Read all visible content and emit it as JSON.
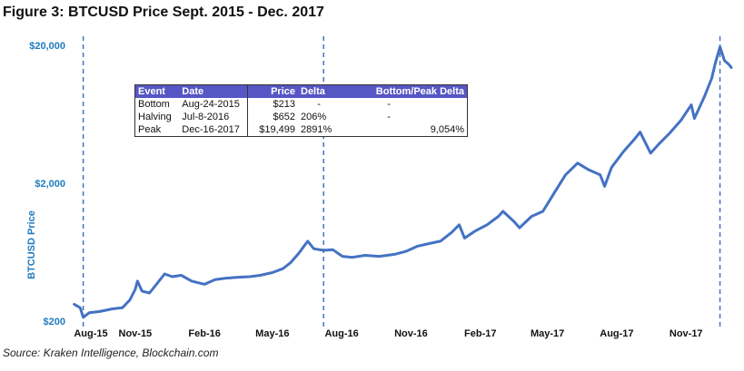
{
  "title": "Figure 3: BTCUSD Price Sept. 2015 - Dec. 2017",
  "source": "Source: Kraken Intelligence, Blockchain.com",
  "table": {
    "headers": [
      "Event",
      "Date",
      "Price",
      "Delta",
      "Bottom/Peak Delta"
    ],
    "rows": [
      {
        "event": "Bottom",
        "date": "Aug-24-2015",
        "price": "$213",
        "delta": "-",
        "bpd": "-"
      },
      {
        "event": "Halving",
        "date": "Jul-8-2016",
        "price": "$652",
        "delta": "206%",
        "bpd": "-"
      },
      {
        "event": "Peak",
        "date": "Dec-16-2017",
        "price": "$19,499",
        "delta": "2891%",
        "bpd": "9,054%"
      }
    ]
  },
  "colors": {
    "line": "#4472c4",
    "axis_text": "#1f7bc1",
    "table_header": "#5656c4"
  },
  "chart_data": {
    "type": "line",
    "title": "Figure 3: BTCUSD Price Sept. 2015 - Dec. 2017",
    "xlabel": "",
    "ylabel": "BTCUSD Price",
    "y_scale": "log",
    "ylim": [
      200,
      20000
    ],
    "xlim": [
      "2015-08-10",
      "2017-12-31"
    ],
    "y_ticks": [
      {
        "value": 200,
        "label": "$200"
      },
      {
        "value": 2000,
        "label": "$2,000"
      },
      {
        "value": 20000,
        "label": "$20,000"
      }
    ],
    "x_ticks": [
      {
        "value": "2015-08-01",
        "label": "Aug-15"
      },
      {
        "value": "2015-11-01",
        "label": "Nov-15"
      },
      {
        "value": "2016-02-01",
        "label": "Feb-16"
      },
      {
        "value": "2016-05-01",
        "label": "May-16"
      },
      {
        "value": "2016-08-01",
        "label": "Aug-16"
      },
      {
        "value": "2016-11-01",
        "label": "Nov-16"
      },
      {
        "value": "2017-02-01",
        "label": "Feb-17"
      },
      {
        "value": "2017-05-01",
        "label": "May-17"
      },
      {
        "value": "2017-08-01",
        "label": "Aug-17"
      },
      {
        "value": "2017-11-01",
        "label": "Nov-17"
      }
    ],
    "event_lines": [
      {
        "date": "2015-08-24",
        "name": "Bottom"
      },
      {
        "date": "2016-07-08",
        "name": "Halving"
      },
      {
        "date": "2017-12-16",
        "name": "Peak"
      }
    ],
    "grid": false,
    "legend": "none",
    "series": [
      {
        "x": [
          "2015-08-12",
          "2015-08-20",
          "2015-08-24",
          "2015-09-01",
          "2015-09-15",
          "2015-10-01",
          "2015-10-15",
          "2015-10-25",
          "2015-11-01",
          "2015-11-04",
          "2015-11-10",
          "2015-11-20",
          "2015-12-01",
          "2015-12-10",
          "2015-12-20",
          "2016-01-01",
          "2016-01-15",
          "2016-02-01",
          "2016-02-15",
          "2016-03-01",
          "2016-03-15",
          "2016-04-01",
          "2016-04-15",
          "2016-05-01",
          "2016-05-15",
          "2016-05-25",
          "2016-06-05",
          "2016-06-12",
          "2016-06-17",
          "2016-06-25",
          "2016-07-08",
          "2016-07-20",
          "2016-08-02",
          "2016-08-15",
          "2016-09-01",
          "2016-09-20",
          "2016-10-10",
          "2016-10-25",
          "2016-11-10",
          "2016-11-25",
          "2016-12-10",
          "2016-12-25",
          "2017-01-04",
          "2017-01-11",
          "2017-01-25",
          "2017-02-10",
          "2017-02-25",
          "2017-03-03",
          "2017-03-18",
          "2017-03-25",
          "2017-04-10",
          "2017-04-25",
          "2017-05-10",
          "2017-05-25",
          "2017-06-10",
          "2017-06-25",
          "2017-07-10",
          "2017-07-16",
          "2017-07-25",
          "2017-08-10",
          "2017-08-25",
          "2017-09-01",
          "2017-09-15",
          "2017-09-25",
          "2017-10-10",
          "2017-10-25",
          "2017-11-08",
          "2017-11-12",
          "2017-11-25",
          "2017-12-05",
          "2017-12-10",
          "2017-12-16",
          "2017-12-22",
          "2017-12-28",
          "2017-12-31"
        ],
        "y": [
          265,
          250,
          213,
          230,
          235,
          245,
          250,
          285,
          340,
          390,
          330,
          320,
          380,
          440,
          420,
          430,
          390,
          370,
          400,
          410,
          415,
          420,
          430,
          450,
          480,
          530,
          620,
          700,
          760,
          670,
          652,
          660,
          590,
          580,
          600,
          590,
          610,
          640,
          700,
          730,
          760,
          880,
          1000,
          800,
          900,
          1000,
          1150,
          1250,
          1050,
          950,
          1150,
          1250,
          1700,
          2300,
          2800,
          2500,
          2300,
          1900,
          2600,
          3400,
          4200,
          4700,
          3300,
          3800,
          4600,
          5700,
          7400,
          5900,
          8400,
          11500,
          15000,
          19499,
          15500,
          14500,
          13800
        ]
      }
    ]
  }
}
